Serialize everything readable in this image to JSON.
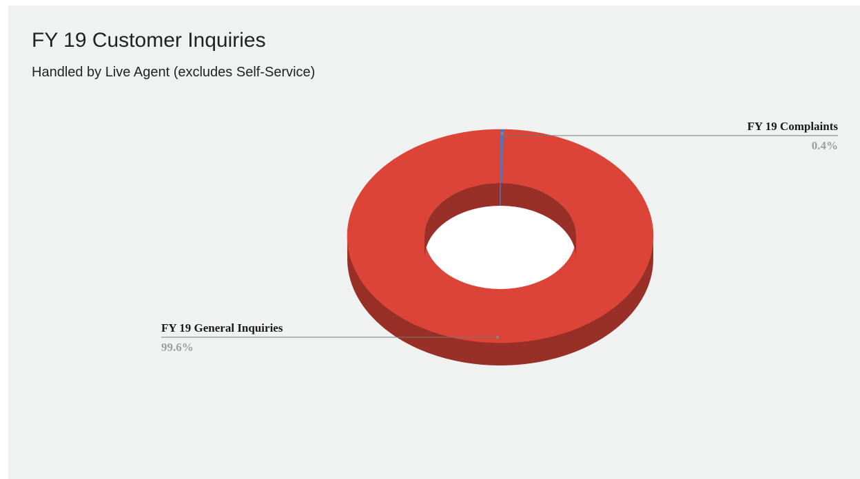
{
  "chart_data": {
    "type": "pie",
    "variant": "3d-donut",
    "title": "FY 19 Customer Inquiries",
    "subtitle": "Handled by Live Agent (excludes Self-Service)",
    "slices": [
      {
        "label": "FY 19 Complaints",
        "value": 0.4,
        "display": "0.4%",
        "color": "#4a77c0"
      },
      {
        "label": "FY 19 General Inquiries",
        "value": 99.6,
        "display": "99.6%",
        "color": "#db4437"
      }
    ],
    "legend": "none"
  }
}
